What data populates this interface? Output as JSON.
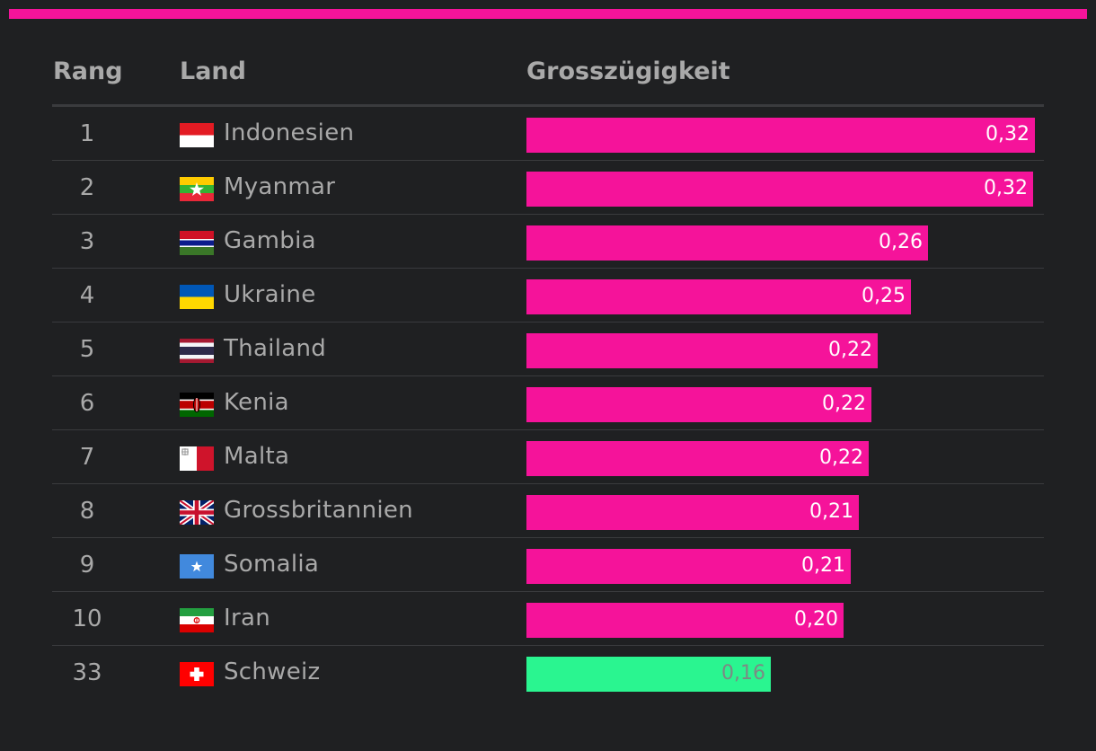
{
  "colors": {
    "accent": "#f5139a",
    "highlight": "#2af590"
  },
  "header": {
    "rank": "Rang",
    "country": "Land",
    "value": "Grosszügigkeit"
  },
  "rows": [
    {
      "rank": "1",
      "country": "Indonesien",
      "flag": "flag-indonesia-icon",
      "value_label": "0,32"
    },
    {
      "rank": "2",
      "country": "Myanmar",
      "flag": "flag-myanmar-icon",
      "value_label": "0,32"
    },
    {
      "rank": "3",
      "country": "Gambia",
      "flag": "flag-gambia-icon",
      "value_label": "0,26"
    },
    {
      "rank": "4",
      "country": "Ukraine",
      "flag": "flag-ukraine-icon",
      "value_label": "0,25"
    },
    {
      "rank": "5",
      "country": "Thailand",
      "flag": "flag-thailand-icon",
      "value_label": "0,22"
    },
    {
      "rank": "6",
      "country": "Kenia",
      "flag": "flag-kenya-icon",
      "value_label": "0,22"
    },
    {
      "rank": "7",
      "country": "Malta",
      "flag": "flag-malta-icon",
      "value_label": "0,22"
    },
    {
      "rank": "8",
      "country": "Grossbritannien",
      "flag": "flag-uk-icon",
      "value_label": "0,21"
    },
    {
      "rank": "9",
      "country": "Somalia",
      "flag": "flag-somalia-icon",
      "value_label": "0,21"
    },
    {
      "rank": "10",
      "country": "Iran",
      "flag": "flag-iran-icon",
      "value_label": "0,20"
    },
    {
      "rank": "33",
      "country": "Schweiz",
      "flag": "flag-switzerland-icon",
      "value_label": "0,16",
      "highlight": true
    }
  ],
  "chart_data": {
    "type": "bar",
    "orientation": "horizontal",
    "categories": [
      "Indonesien",
      "Myanmar",
      "Gambia",
      "Ukraine",
      "Thailand",
      "Kenia",
      "Malta",
      "Grossbritannien",
      "Somalia",
      "Iran",
      "Schweiz"
    ],
    "values": [
      0.324,
      0.323,
      0.256,
      0.245,
      0.224,
      0.22,
      0.218,
      0.212,
      0.207,
      0.202,
      0.156
    ],
    "ranks": [
      1,
      2,
      3,
      4,
      5,
      6,
      7,
      8,
      9,
      10,
      33
    ],
    "highlighted_category": "Schweiz",
    "xlim": [
      0,
      0.33
    ],
    "grid": false
  }
}
